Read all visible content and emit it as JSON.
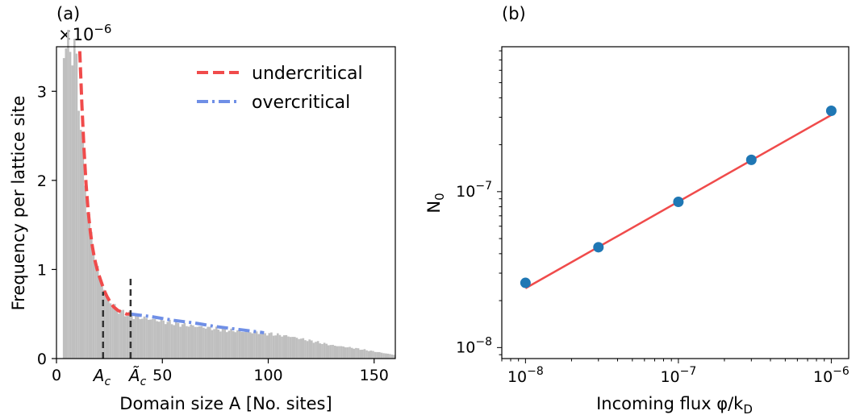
{
  "chart_data": [
    {
      "panel": "(a)",
      "type": "bar",
      "xlabel": "Domain size A [No. sites]",
      "ylabel": "Frequency per lattice site",
      "y_multiplier_text": "×10",
      "y_multiplier_exp": "−6",
      "xlim": [
        0,
        160
      ],
      "ylim": [
        0,
        3.5
      ],
      "x_tick_values": [
        0,
        50,
        100,
        150
      ],
      "x_tick_labels": [
        "0",
        "50",
        "100",
        "150"
      ],
      "y_tick_values": [
        0,
        1,
        2,
        3
      ],
      "y_tick_labels": [
        "0",
        "1",
        "2",
        "3"
      ],
      "critical_markers": [
        {
          "label_base": "A",
          "label_sub": "c",
          "tilde": false,
          "x": 22,
          "y_top": 0.75
        },
        {
          "label_base": "Ã",
          "label_sub": "c",
          "tilde": true,
          "x": 35,
          "y_top": 0.9
        }
      ],
      "histogram": {
        "color": "#bfbfbf",
        "x_range": [
          3,
          160
        ],
        "envelope": {
          "x": [
            3,
            5,
            8,
            10,
            12,
            14,
            16,
            18,
            20,
            22,
            24,
            26,
            28,
            30,
            33,
            36,
            40,
            45,
            50,
            55,
            60,
            70,
            80,
            90,
            100,
            110,
            120,
            130,
            140,
            150,
            160
          ],
          "y": [
            3.5,
            3.5,
            3.5,
            3.2,
            2.4,
            1.85,
            1.45,
            1.15,
            0.95,
            0.8,
            0.7,
            0.62,
            0.57,
            0.53,
            0.5,
            0.48,
            0.46,
            0.44,
            0.42,
            0.4,
            0.38,
            0.35,
            0.32,
            0.3,
            0.28,
            0.25,
            0.2,
            0.15,
            0.12,
            0.08,
            0.04
          ]
        }
      },
      "series": [
        {
          "name": "undercritical",
          "style": "dashed",
          "color": "#f04b4b",
          "x": [
            11,
            12,
            13,
            14,
            15,
            16,
            17,
            18,
            19,
            20,
            21,
            22,
            23,
            24,
            25,
            26,
            27,
            28,
            29,
            30,
            31,
            32,
            33,
            34,
            35
          ],
          "y": [
            3.45,
            2.85,
            2.35,
            1.95,
            1.65,
            1.42,
            1.25,
            1.12,
            1.02,
            0.94,
            0.87,
            0.8,
            0.74,
            0.69,
            0.65,
            0.61,
            0.58,
            0.56,
            0.54,
            0.53,
            0.52,
            0.51,
            0.5,
            0.5,
            0.5
          ]
        },
        {
          "name": "overcritical",
          "style": "dashdot",
          "color": "#6f8fe6",
          "x": [
            35,
            45,
            55,
            65,
            75,
            85,
            95,
            98
          ],
          "y": [
            0.5,
            0.47,
            0.43,
            0.4,
            0.36,
            0.33,
            0.3,
            0.29
          ]
        }
      ]
    },
    {
      "panel": "(b)",
      "type": "scatter",
      "xlabel": "Incoming flux φ/k",
      "xlabel_sub": "D",
      "ylabel": "N",
      "ylabel_sub": "0",
      "xscale": "log",
      "yscale": "log",
      "xlim": [
        7e-09,
        1.3e-06
      ],
      "ylim": [
        8.5e-09,
        8.5e-07
      ],
      "x_tick_labels": [
        {
          "value": 1e-08,
          "base": "10",
          "exp": "−8"
        },
        {
          "value": 1e-07,
          "base": "10",
          "exp": "−7"
        },
        {
          "value": 1e-06,
          "base": "10",
          "exp": "−6"
        }
      ],
      "y_tick_labels": [
        {
          "value": 1e-08,
          "base": "10",
          "exp": "−8"
        },
        {
          "value": 1e-07,
          "base": "10",
          "exp": "−7"
        }
      ],
      "points": {
        "color": "#1f77b4",
        "x": [
          1e-08,
          3e-08,
          1e-07,
          3e-07,
          1e-06
        ],
        "y": [
          2.6e-08,
          4.4e-08,
          8.6e-08,
          1.6e-07,
          3.3e-07
        ]
      },
      "fit_line": {
        "color": "#f04b4b",
        "x": [
          1e-08,
          1e-06
        ],
        "y": [
          2.4e-08,
          3.1e-07
        ]
      }
    }
  ]
}
